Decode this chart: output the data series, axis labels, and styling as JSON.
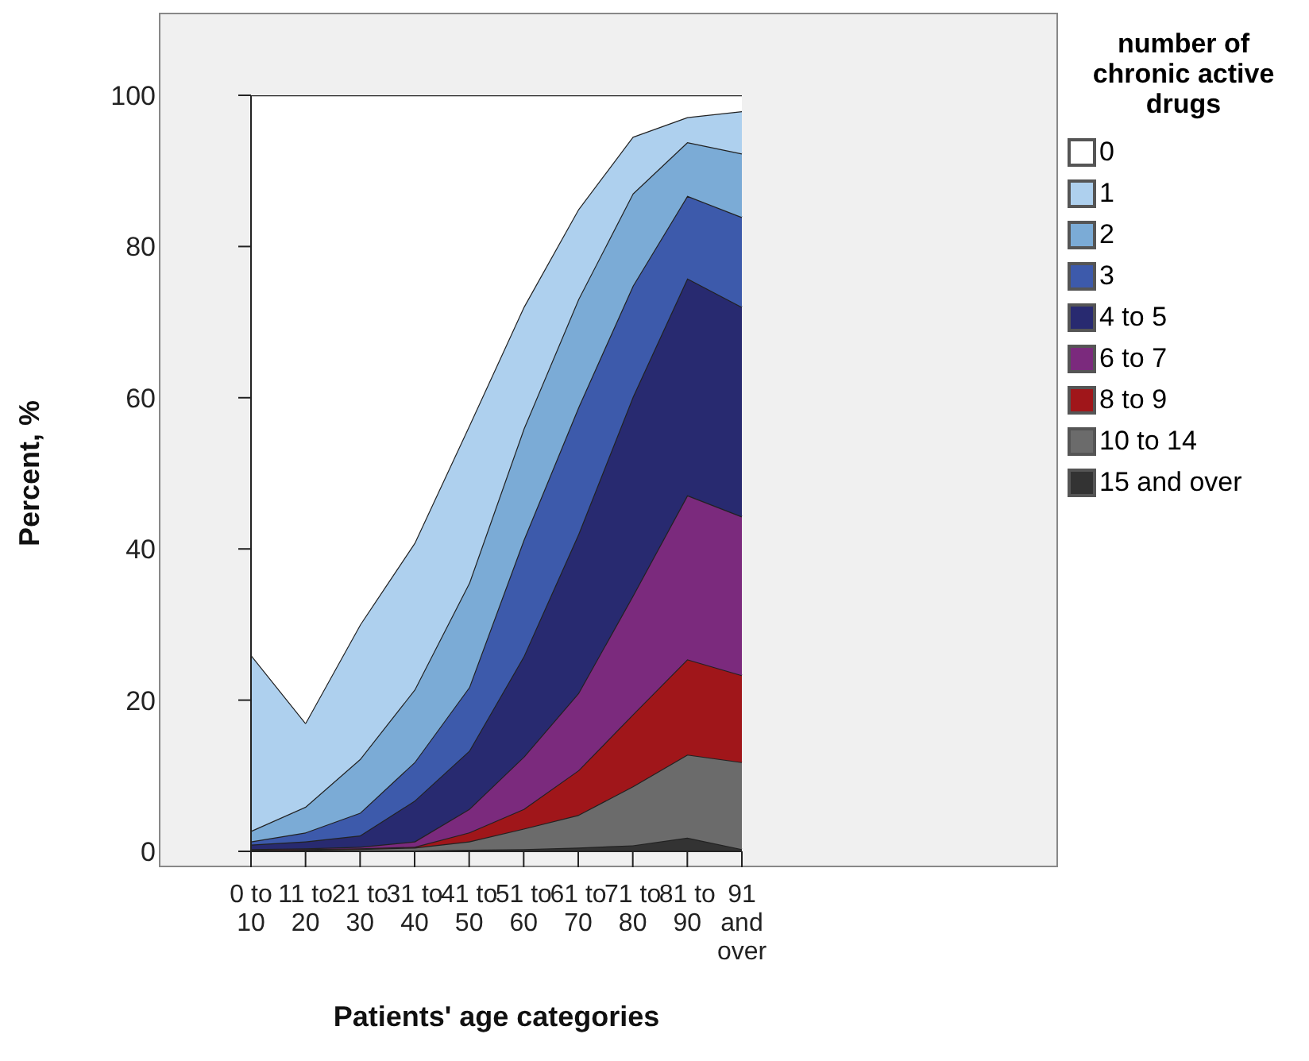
{
  "chart_data": {
    "type": "area",
    "stacked": true,
    "xlabel": "Patients' age categories",
    "ylabel": "Percent, %",
    "legend_title": "number of chronic active drugs",
    "legend": "right",
    "categories": [
      "0 to 10",
      "11 to 20",
      "21 to 30",
      "31 to 40",
      "41 to 50",
      "51 to 60",
      "61 to 70",
      "71 to 80",
      "81 to 90",
      "91 and over"
    ],
    "ylim": [
      0,
      100
    ],
    "yticks": [
      0,
      20,
      40,
      60,
      80,
      100
    ],
    "series": [
      {
        "name": "15 and over",
        "color": "#333333",
        "values": [
          0,
          0,
          0,
          0.1,
          0.2,
          0.3,
          0.5,
          0.8,
          1.8,
          0.3
        ]
      },
      {
        "name": "10 to 14",
        "color": "#6b6b6b",
        "values": [
          0.1,
          0.2,
          0.3,
          0.4,
          1.1,
          2.7,
          4.3,
          7.8,
          11.0,
          11.5
        ]
      },
      {
        "name": "8 to 9",
        "color": "#a0161a",
        "values": [
          0.1,
          0.1,
          0.1,
          0.1,
          1.2,
          2.6,
          5.9,
          9.5,
          12.6,
          11.5
        ]
      },
      {
        "name": "6 to 7",
        "color": "#7b2a7d",
        "values": [
          0.1,
          0.1,
          0.2,
          0.7,
          3.1,
          6.9,
          10.2,
          15.7,
          21.7,
          21.0
        ]
      },
      {
        "name": "4 to 5",
        "color": "#282a70",
        "values": [
          0.6,
          0.9,
          1.5,
          5.4,
          7.7,
          13.3,
          21.0,
          26.3,
          28.7,
          27.7
        ]
      },
      {
        "name": "3",
        "color": "#3d5aab",
        "values": [
          0.4,
          1.2,
          3.0,
          5.1,
          8.4,
          15.4,
          16.8,
          14.7,
          10.9,
          11.9
        ]
      },
      {
        "name": "2",
        "color": "#7babd6",
        "values": [
          1.4,
          3.4,
          7.1,
          9.6,
          13.8,
          14.7,
          14.3,
          12.2,
          7.1,
          8.4
        ]
      },
      {
        "name": "1",
        "color": "#aed0ee",
        "values": [
          23.3,
          11.1,
          17.8,
          19.4,
          20.8,
          16.1,
          11.9,
          7.5,
          3.3,
          5.6
        ]
      },
      {
        "name": "0",
        "color": "#ffffff",
        "values": [
          74.0,
          83.0,
          70.0,
          59.2,
          43.7,
          28.0,
          15.1,
          5.5,
          2.9,
          2.1
        ]
      }
    ]
  }
}
